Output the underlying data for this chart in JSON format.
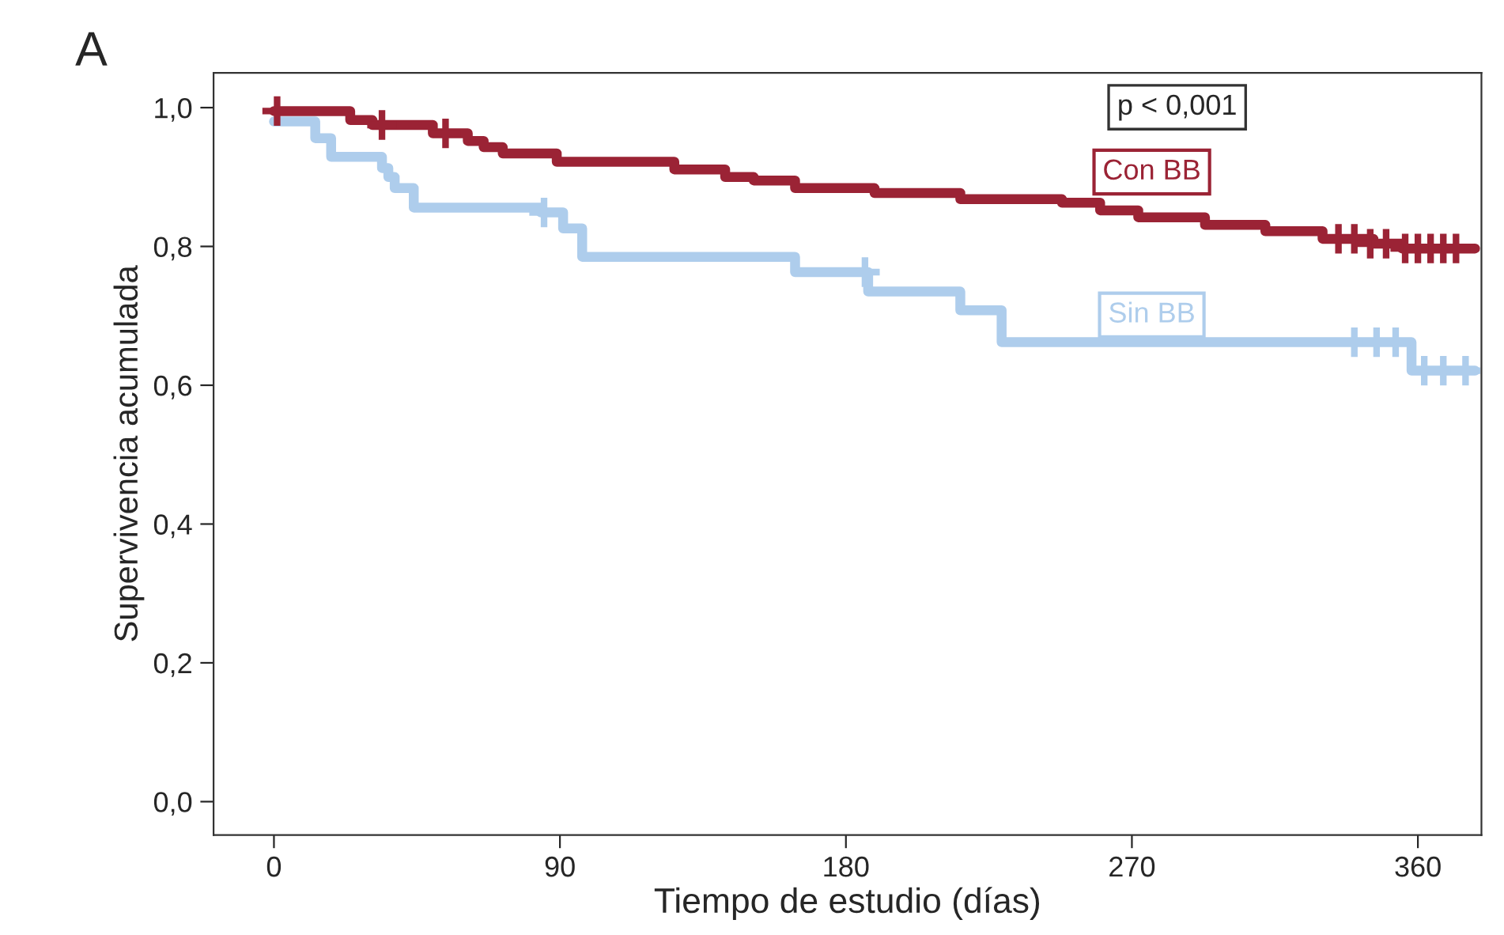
{
  "chart_data": {
    "type": "step",
    "title": "A",
    "xlabel": "Tiempo de estudio (días)",
    "ylabel": "Supervivencia acumulada",
    "xlim": [
      -19,
      380
    ],
    "ylim": [
      -0.048,
      1.05
    ],
    "xticks": [
      0,
      90,
      180,
      270,
      360
    ],
    "yticks": [
      {
        "value": 0.0,
        "label": "0,0"
      },
      {
        "value": 0.2,
        "label": "0,2"
      },
      {
        "value": 0.4,
        "label": "0,4"
      },
      {
        "value": 0.6,
        "label": "0,6"
      },
      {
        "value": 0.8,
        "label": "0,8"
      },
      {
        "value": 1.0,
        "label": "1,0"
      }
    ],
    "grid": false,
    "legend": false,
    "annotations": [
      "p < 0,001"
    ],
    "series": [
      {
        "name": "Con BB",
        "color": "#9b2335",
        "x": [
          0,
          24,
          31,
          50,
          61,
          66,
          72,
          89,
          126,
          142,
          151,
          164,
          189,
          216,
          248,
          260,
          272,
          293,
          312,
          330,
          346,
          355,
          378
        ],
        "values": [
          0.995,
          0.982,
          0.975,
          0.963,
          0.952,
          0.943,
          0.934,
          0.922,
          0.911,
          0.9,
          0.895,
          0.884,
          0.877,
          0.868,
          0.863,
          0.852,
          0.842,
          0.831,
          0.822,
          0.811,
          0.804,
          0.797,
          0.797
        ]
      },
      {
        "name": "Sin BB",
        "color": "#aecdec",
        "x": [
          0,
          13,
          18,
          34,
          36,
          38,
          44,
          84,
          91,
          97,
          164,
          187,
          216,
          229,
          358,
          378
        ],
        "values": [
          0.98,
          0.956,
          0.929,
          0.913,
          0.9,
          0.884,
          0.856,
          0.849,
          0.826,
          0.785,
          0.763,
          0.735,
          0.708,
          0.662,
          0.621,
          0.621
        ]
      },
      {
        "type": "scatter",
        "marker": "cross",
        "color": "#9b2335",
        "x": [
          1,
          34,
          54,
          335,
          340,
          345,
          350,
          356,
          360,
          364,
          368,
          372
        ],
        "values": [
          0.995,
          0.975,
          0.963,
          0.811,
          0.811,
          0.804,
          0.804,
          0.797,
          0.797,
          0.797,
          0.797,
          0.797
        ]
      },
      {
        "type": "scatter",
        "marker": "cross",
        "color": "#aecdec",
        "x": [
          85,
          186,
          340,
          347,
          353,
          362,
          368,
          375
        ],
        "values": [
          0.849,
          0.763,
          0.662,
          0.662,
          0.662,
          0.621,
          0.621,
          0.621
        ]
      }
    ]
  }
}
